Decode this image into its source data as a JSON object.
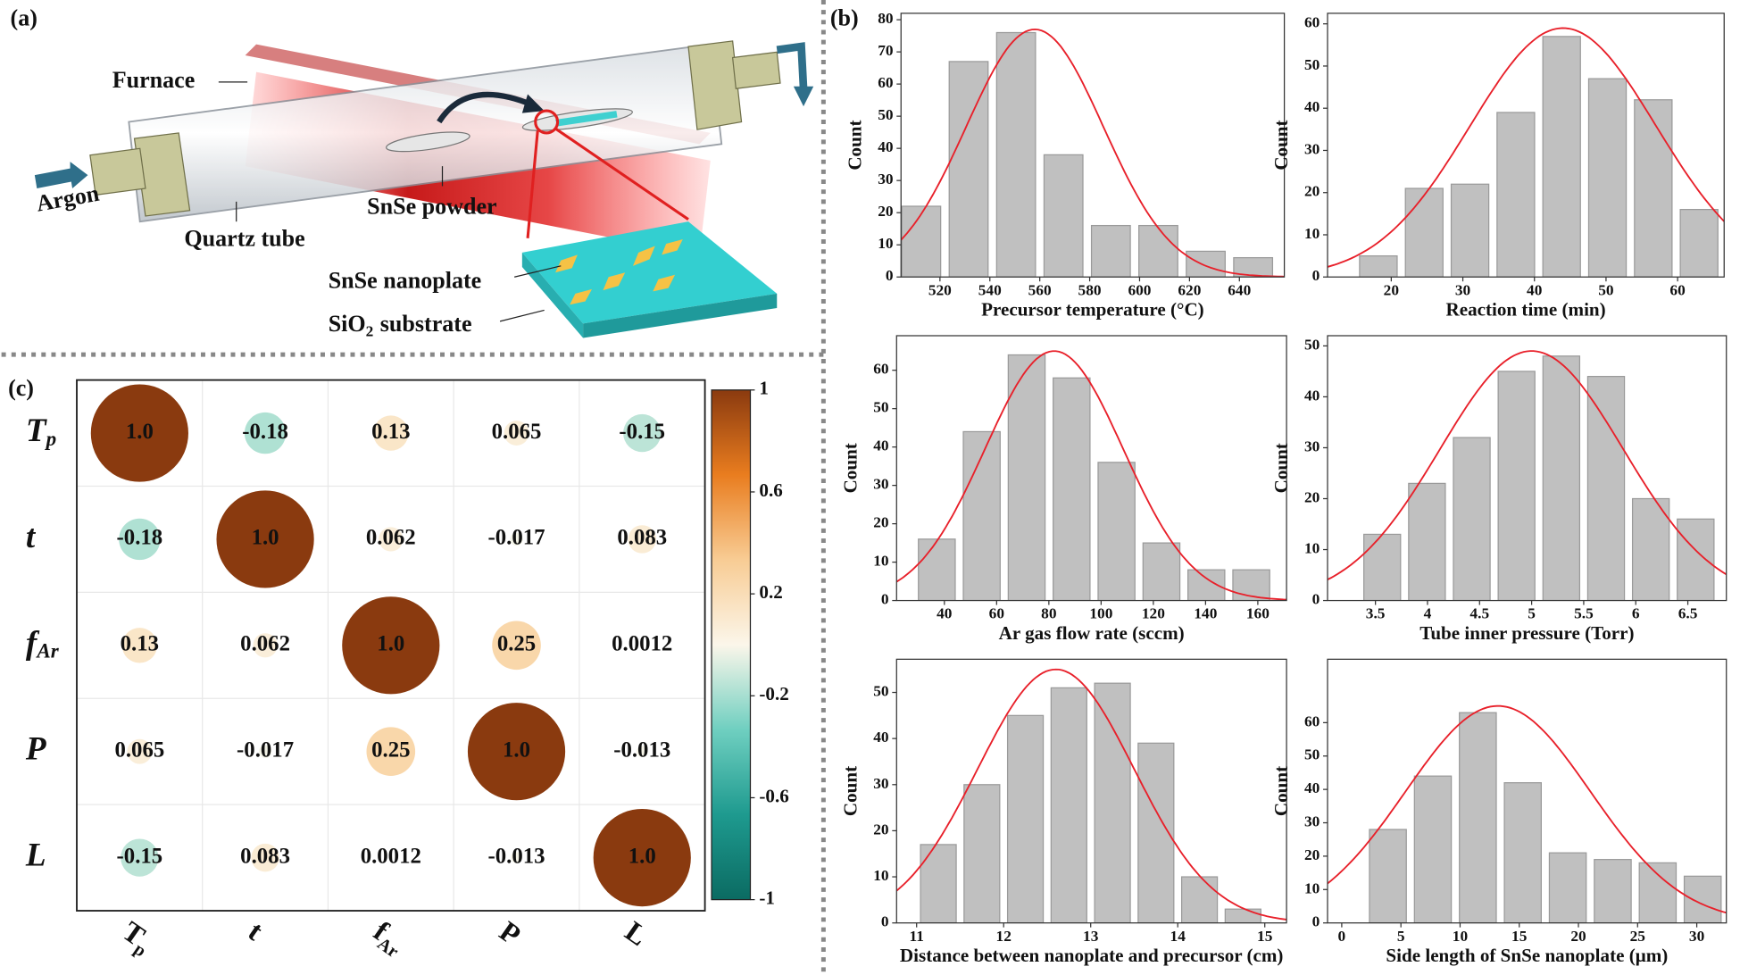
{
  "panel_labels": {
    "a": "(a)",
    "b": "(b)",
    "c": "(c)"
  },
  "diagram": {
    "furnace": "Furnace",
    "argon": "Argon",
    "quartz_tube": "Quartz tube",
    "snse_powder": "SnSe powder",
    "snse_nanoplate": "SnSe nanoplate",
    "substrate": {
      "base": "SiO",
      "sub": "2",
      "rest": "substrate"
    }
  },
  "chart_data": [
    {
      "type": "histogram",
      "xlabel": "Precursor temperature (°C)",
      "ylabel": "Count",
      "bins": [
        503,
        522,
        541,
        560,
        579,
        598,
        617,
        636,
        655
      ],
      "values": [
        22,
        67,
        76,
        38,
        16,
        16,
        8,
        6
      ],
      "color": "#c0c0c0",
      "fit": {
        "peak": 77,
        "mean": 558,
        "sd": 27.5,
        "color": "#e8202a"
      },
      "xlim": [
        504.4,
        658
      ],
      "ylim": [
        0,
        82
      ],
      "xticks": [
        520,
        540,
        560,
        580,
        600,
        620,
        640
      ],
      "yticks": [
        0,
        10,
        20,
        30,
        40,
        50,
        60,
        70,
        80
      ]
    },
    {
      "type": "histogram",
      "xlabel": "Reaction time (min)",
      "ylabel": "Count",
      "bins": [
        15,
        21.4,
        27.8,
        34.2,
        40.6,
        47,
        53.4,
        59.8,
        66.2
      ],
      "values": [
        5,
        21,
        22,
        39,
        57,
        47,
        42,
        16
      ],
      "color": "#c0c0c0",
      "fit": {
        "peak": 59,
        "mean": 44,
        "sd": 13,
        "color": "#e8202a"
      },
      "xlim": [
        11.1,
        66.5
      ],
      "ylim": [
        0,
        62.5
      ],
      "xticks": [
        20,
        30,
        40,
        50,
        60
      ],
      "yticks": [
        0,
        10,
        20,
        30,
        40,
        50,
        60
      ]
    },
    {
      "type": "histogram",
      "xlabel": "Ar gas flow rate (sccm)",
      "ylabel": "Count",
      "bins": [
        28.5,
        45.7,
        62.9,
        80.1,
        97.3,
        114.5,
        131.7,
        148.9,
        166.1
      ],
      "values": [
        16,
        44,
        64,
        58,
        36,
        15,
        8,
        8
      ],
      "color": "#c0c0c0",
      "fit": {
        "peak": 65,
        "mean": 82,
        "sd": 26.5,
        "color": "#e8202a"
      },
      "xlim": [
        21.7,
        171
      ],
      "ylim": [
        0,
        69
      ],
      "xticks": [
        40,
        60,
        80,
        100,
        120,
        140,
        160
      ],
      "yticks": [
        0,
        10,
        20,
        30,
        40,
        50,
        60
      ]
    },
    {
      "type": "histogram",
      "xlabel": "Tube inner pressure (Torr)",
      "ylabel": "Count",
      "bins": [
        3.35,
        3.78,
        4.21,
        4.64,
        5.07,
        5.5,
        5.93,
        6.36,
        6.79
      ],
      "values": [
        13,
        23,
        32,
        45,
        48,
        44,
        20,
        16
      ],
      "color": "#c0c0c0",
      "fit": {
        "peak": 49,
        "mean": 5.0,
        "sd": 0.88,
        "color": "#e8202a"
      },
      "xlim": [
        3.04,
        6.87
      ],
      "ylim": [
        0,
        52
      ],
      "xticks": [
        3.5,
        4.0,
        4.5,
        5.0,
        5.5,
        6.0,
        6.5
      ],
      "yticks": [
        0,
        10,
        20,
        30,
        40,
        50
      ]
    },
    {
      "type": "histogram",
      "xlabel": "Distance between nanoplate and precursor (cm)",
      "ylabel": "Count",
      "bins": [
        11,
        11.5,
        12,
        12.5,
        13,
        13.5,
        14,
        14.5,
        15
      ],
      "values": [
        17,
        30,
        45,
        51,
        52,
        39,
        10,
        3
      ],
      "color": "#c0c0c0",
      "fit": {
        "peak": 55,
        "mean": 12.6,
        "sd": 0.9,
        "color": "#e8202a"
      },
      "xlim": [
        10.77,
        15.25
      ],
      "ylim": [
        0,
        57.2
      ],
      "xticks": [
        11,
        12,
        13,
        14,
        15
      ],
      "yticks": [
        0,
        10,
        20,
        30,
        40,
        50
      ]
    },
    {
      "type": "histogram",
      "xlabel": "Side length of SnSe nanoplate (μm)",
      "ylabel": "Count",
      "bins": [
        2,
        5.8,
        9.6,
        13.4,
        17.2,
        21,
        24.8,
        28.6,
        32.4
      ],
      "values": [
        28,
        44,
        63,
        42,
        21,
        19,
        18,
        14
      ],
      "color": "#c0c0c0",
      "fit": {
        "peak": 65,
        "mean": 13.2,
        "sd": 7.8,
        "color": "#e8202a"
      },
      "xlim": [
        -1.2,
        32.5
      ],
      "ylim": [
        0,
        79
      ],
      "xticks": [
        0,
        5,
        10,
        15,
        20,
        25,
        30
      ],
      "yticks": [
        0,
        10,
        20,
        30,
        40,
        50,
        60
      ]
    },
    {
      "type": "correlation",
      "labels": [
        {
          "base": "T",
          "sub": "p"
        },
        {
          "base": "t"
        },
        {
          "base": "f",
          "sub": "Ar"
        },
        {
          "base": "P"
        },
        {
          "base": "L"
        }
      ],
      "values": [
        [
          1,
          -0.18,
          0.13,
          0.065,
          -0.15
        ],
        [
          -0.18,
          1,
          0.062,
          -0.017,
          0.083
        ],
        [
          0.13,
          0.062,
          1,
          0.25,
          0.0012
        ],
        [
          0.065,
          -0.017,
          0.25,
          1,
          -0.013
        ],
        [
          -0.15,
          0.083,
          0.0012,
          -0.013,
          1
        ]
      ],
      "value_labels": [
        [
          "1.0",
          "-0.18",
          "0.13",
          "0.065",
          "-0.15"
        ],
        [
          "-0.18",
          "1.0",
          "0.062",
          "-0.017",
          "0.083"
        ],
        [
          "0.13",
          "0.062",
          "1.0",
          "0.25",
          "0.0012"
        ],
        [
          "0.065",
          "-0.017",
          "0.25",
          "1.0",
          "-0.013"
        ],
        [
          "-0.15",
          "0.083",
          "0.0012",
          "-0.013",
          "1.0"
        ]
      ],
      "clim": [
        -1,
        1
      ],
      "cticks": [
        1,
        0.6,
        0.2,
        -0.2,
        -0.6,
        -1
      ],
      "colors": [
        "#0b6b62",
        "#1e9a8f",
        "#6fcfc0",
        "#fbf6ea",
        "#f8cc94",
        "#e97d1f",
        "#8a3a0f"
      ]
    }
  ]
}
